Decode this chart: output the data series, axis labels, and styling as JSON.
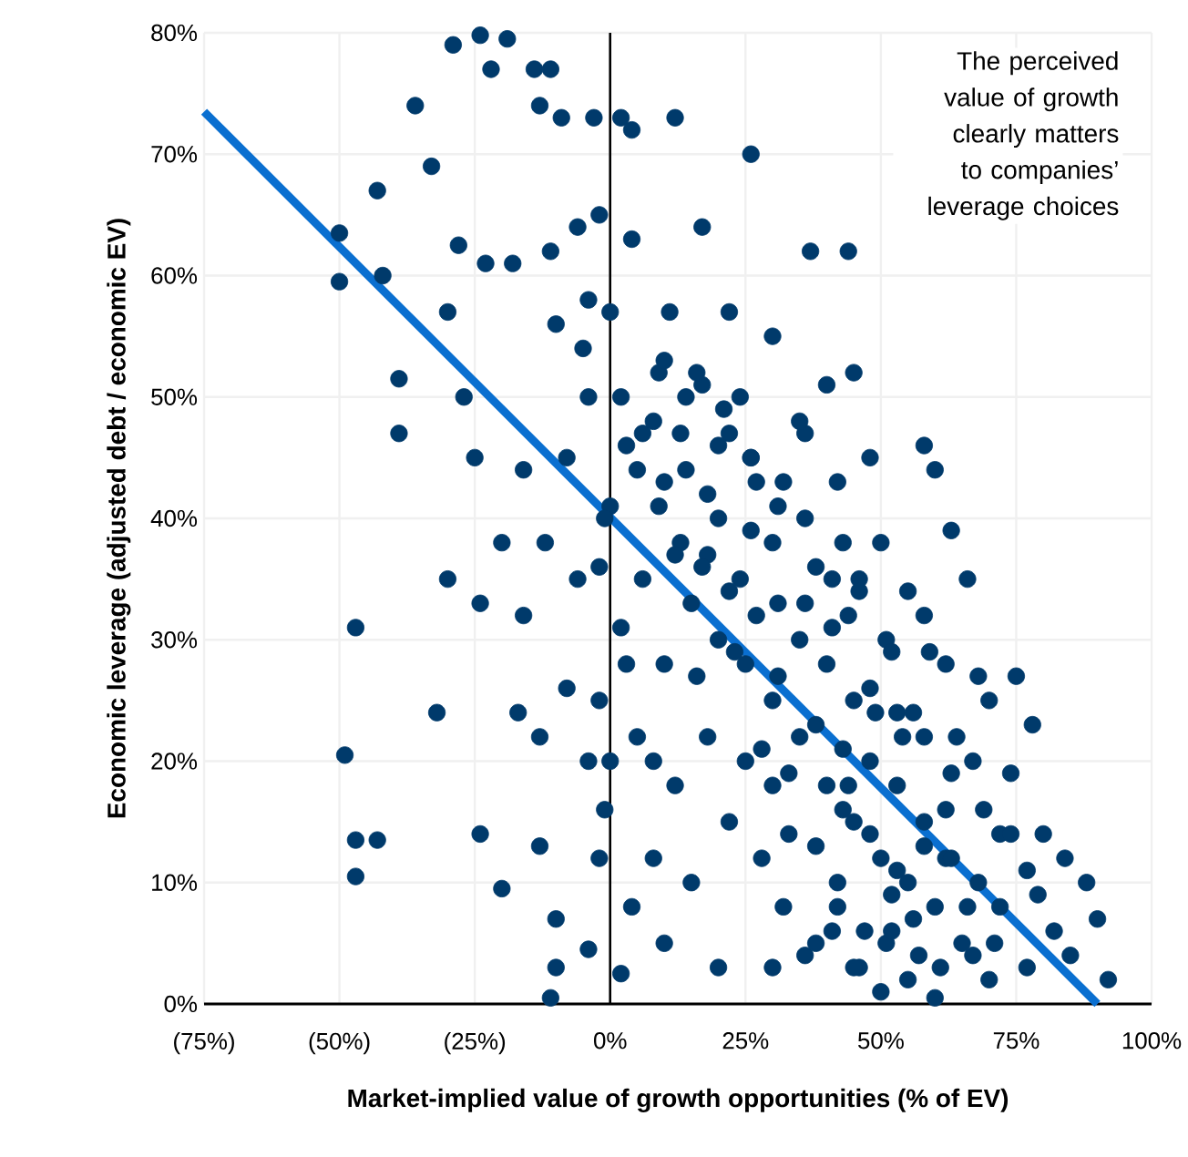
{
  "chart_data": {
    "type": "scatter",
    "xlabel": "Market-implied value of growth opportunities (% of EV)",
    "ylabel": "Economic leverage (adjusted debt / economic EV)",
    "xlim": [
      -75,
      100
    ],
    "ylim": [
      0,
      80
    ],
    "xticks": [
      {
        "value": -75,
        "label": "(75%)"
      },
      {
        "value": -50,
        "label": "(50%)"
      },
      {
        "value": -25,
        "label": "(25%)"
      },
      {
        "value": 0,
        "label": "0%"
      },
      {
        "value": 25,
        "label": "25%"
      },
      {
        "value": 50,
        "label": "50%"
      },
      {
        "value": 75,
        "label": "75%"
      },
      {
        "value": 100,
        "label": "100%"
      }
    ],
    "yticks": [
      {
        "value": 0,
        "label": "0%"
      },
      {
        "value": 10,
        "label": "10%"
      },
      {
        "value": 20,
        "label": "20%"
      },
      {
        "value": 30,
        "label": "30%"
      },
      {
        "value": 40,
        "label": "40%"
      },
      {
        "value": 50,
        "label": "50%"
      },
      {
        "value": 60,
        "label": "60%"
      },
      {
        "value": 70,
        "label": "70%"
      },
      {
        "value": 80,
        "label": "80%"
      }
    ],
    "grid": true,
    "marker": "circle",
    "annotations": [
      "The perceived value of growth clearly matters to companies’ leverage choices"
    ],
    "series": [
      {
        "color": "#003a6b",
        "x": [
          36,
          41,
          46,
          51,
          56,
          61,
          66,
          71,
          33,
          38,
          43,
          48,
          53,
          58,
          63,
          28,
          33,
          38,
          43,
          48,
          53,
          58,
          23,
          27,
          31,
          36,
          41,
          46,
          51,
          18,
          22,
          26,
          31,
          36,
          41,
          46,
          14,
          18,
          22,
          26,
          31,
          36,
          9,
          13,
          17,
          21,
          26,
          5,
          9,
          13,
          17,
          2,
          6,
          10,
          42,
          47,
          52,
          57,
          62,
          67,
          72,
          77,
          44,
          49,
          54,
          59,
          64,
          69,
          74,
          79,
          -50,
          -50,
          -43,
          -42,
          -39,
          -39,
          -47,
          -49,
          -47,
          -43,
          -47,
          -36,
          -29,
          -24,
          -22,
          -19,
          -14,
          -13,
          -11,
          -9,
          -3,
          -33,
          -28,
          -23,
          -18,
          -11,
          -30,
          -27,
          -25,
          -24,
          -30,
          -32,
          -24,
          -20,
          -13,
          -10,
          -10,
          -11,
          -4,
          -20,
          -16,
          -12,
          -6,
          -17,
          -13,
          -8,
          -4,
          -1,
          -8,
          -16,
          -4,
          -10,
          -5,
          -2,
          -6,
          -4,
          2,
          4,
          4,
          0,
          0,
          3,
          -2,
          2,
          3,
          5,
          -2,
          4,
          2,
          -1,
          12,
          17,
          26,
          11,
          16,
          22,
          30,
          37,
          44,
          35,
          40,
          45,
          42,
          48,
          32,
          20,
          27,
          8,
          12,
          20,
          24,
          30,
          38,
          43,
          50,
          55,
          58,
          60,
          63,
          66,
          58,
          52,
          62,
          68,
          70,
          75,
          78,
          74,
          80,
          84,
          88,
          90,
          92,
          85,
          82,
          77,
          70,
          65,
          60,
          55,
          50,
          45,
          40,
          35,
          30,
          25,
          20,
          15,
          10,
          8,
          12,
          18,
          22,
          28,
          32,
          38,
          45,
          50,
          55,
          60,
          48,
          53,
          58,
          63,
          68,
          72,
          35,
          40,
          45,
          30,
          25,
          15,
          10,
          20,
          30,
          42,
          52,
          62,
          67,
          56,
          44,
          8,
          16,
          6,
          10,
          14,
          24,
          -2,
          0
        ],
        "values": [
          4,
          6,
          3,
          5,
          7,
          3,
          8,
          5,
          14,
          13,
          16,
          14,
          11,
          13,
          19,
          21,
          19,
          23,
          21,
          26,
          24,
          22,
          29,
          32,
          27,
          33,
          31,
          35,
          30,
          37,
          34,
          39,
          33,
          40,
          35,
          34,
          44,
          42,
          47,
          45,
          41,
          47,
          52,
          47,
          51,
          49,
          45,
          44,
          41,
          38,
          36,
          50,
          47,
          53,
          8,
          6,
          9,
          4,
          12,
          4,
          14,
          11,
          18,
          24,
          22,
          29,
          22,
          16,
          14,
          9,
          63.5,
          59.5,
          67,
          60,
          51.5,
          47,
          31,
          20.5,
          13.5,
          13.5,
          10.5,
          74,
          79,
          79.8,
          77,
          79.5,
          77,
          74,
          77,
          73,
          73,
          69,
          62.5,
          61,
          61,
          62,
          57,
          50,
          45,
          33,
          35,
          24,
          14,
          9.5,
          13,
          7,
          3,
          0.5,
          4.5,
          38,
          32,
          38,
          35,
          24,
          22,
          26,
          20,
          16,
          45,
          44,
          50,
          56,
          54,
          65,
          64,
          58,
          73,
          72,
          63,
          57,
          41,
          46,
          36,
          31,
          28,
          22,
          12,
          8,
          2.5,
          40,
          73,
          64,
          70,
          57,
          52,
          57,
          55,
          62,
          62,
          48,
          51,
          52,
          43,
          45,
          43,
          46,
          43,
          48,
          37,
          40,
          35,
          38,
          36,
          38,
          38,
          34,
          46,
          44,
          39,
          35,
          32,
          29,
          28,
          27,
          25,
          27,
          23,
          19,
          14,
          12,
          10,
          7,
          2,
          4,
          6,
          3,
          2,
          5,
          8,
          10,
          12,
          15,
          18,
          22,
          25,
          28,
          30,
          33,
          28,
          20,
          18,
          22,
          15,
          12,
          8,
          5,
          3,
          1,
          2,
          0.5,
          20,
          18,
          15,
          12,
          10,
          8,
          30,
          28,
          25,
          18,
          20,
          10,
          5,
          3,
          3,
          10,
          6,
          16,
          20,
          24,
          32,
          12,
          27,
          35,
          43,
          50,
          50,
          25,
          20
        ]
      },
      {
        "type": "line",
        "color": "#0a6fd0",
        "marker": "none",
        "x": [
          -75,
          90
        ],
        "values": [
          73.5,
          0
        ]
      }
    ]
  }
}
